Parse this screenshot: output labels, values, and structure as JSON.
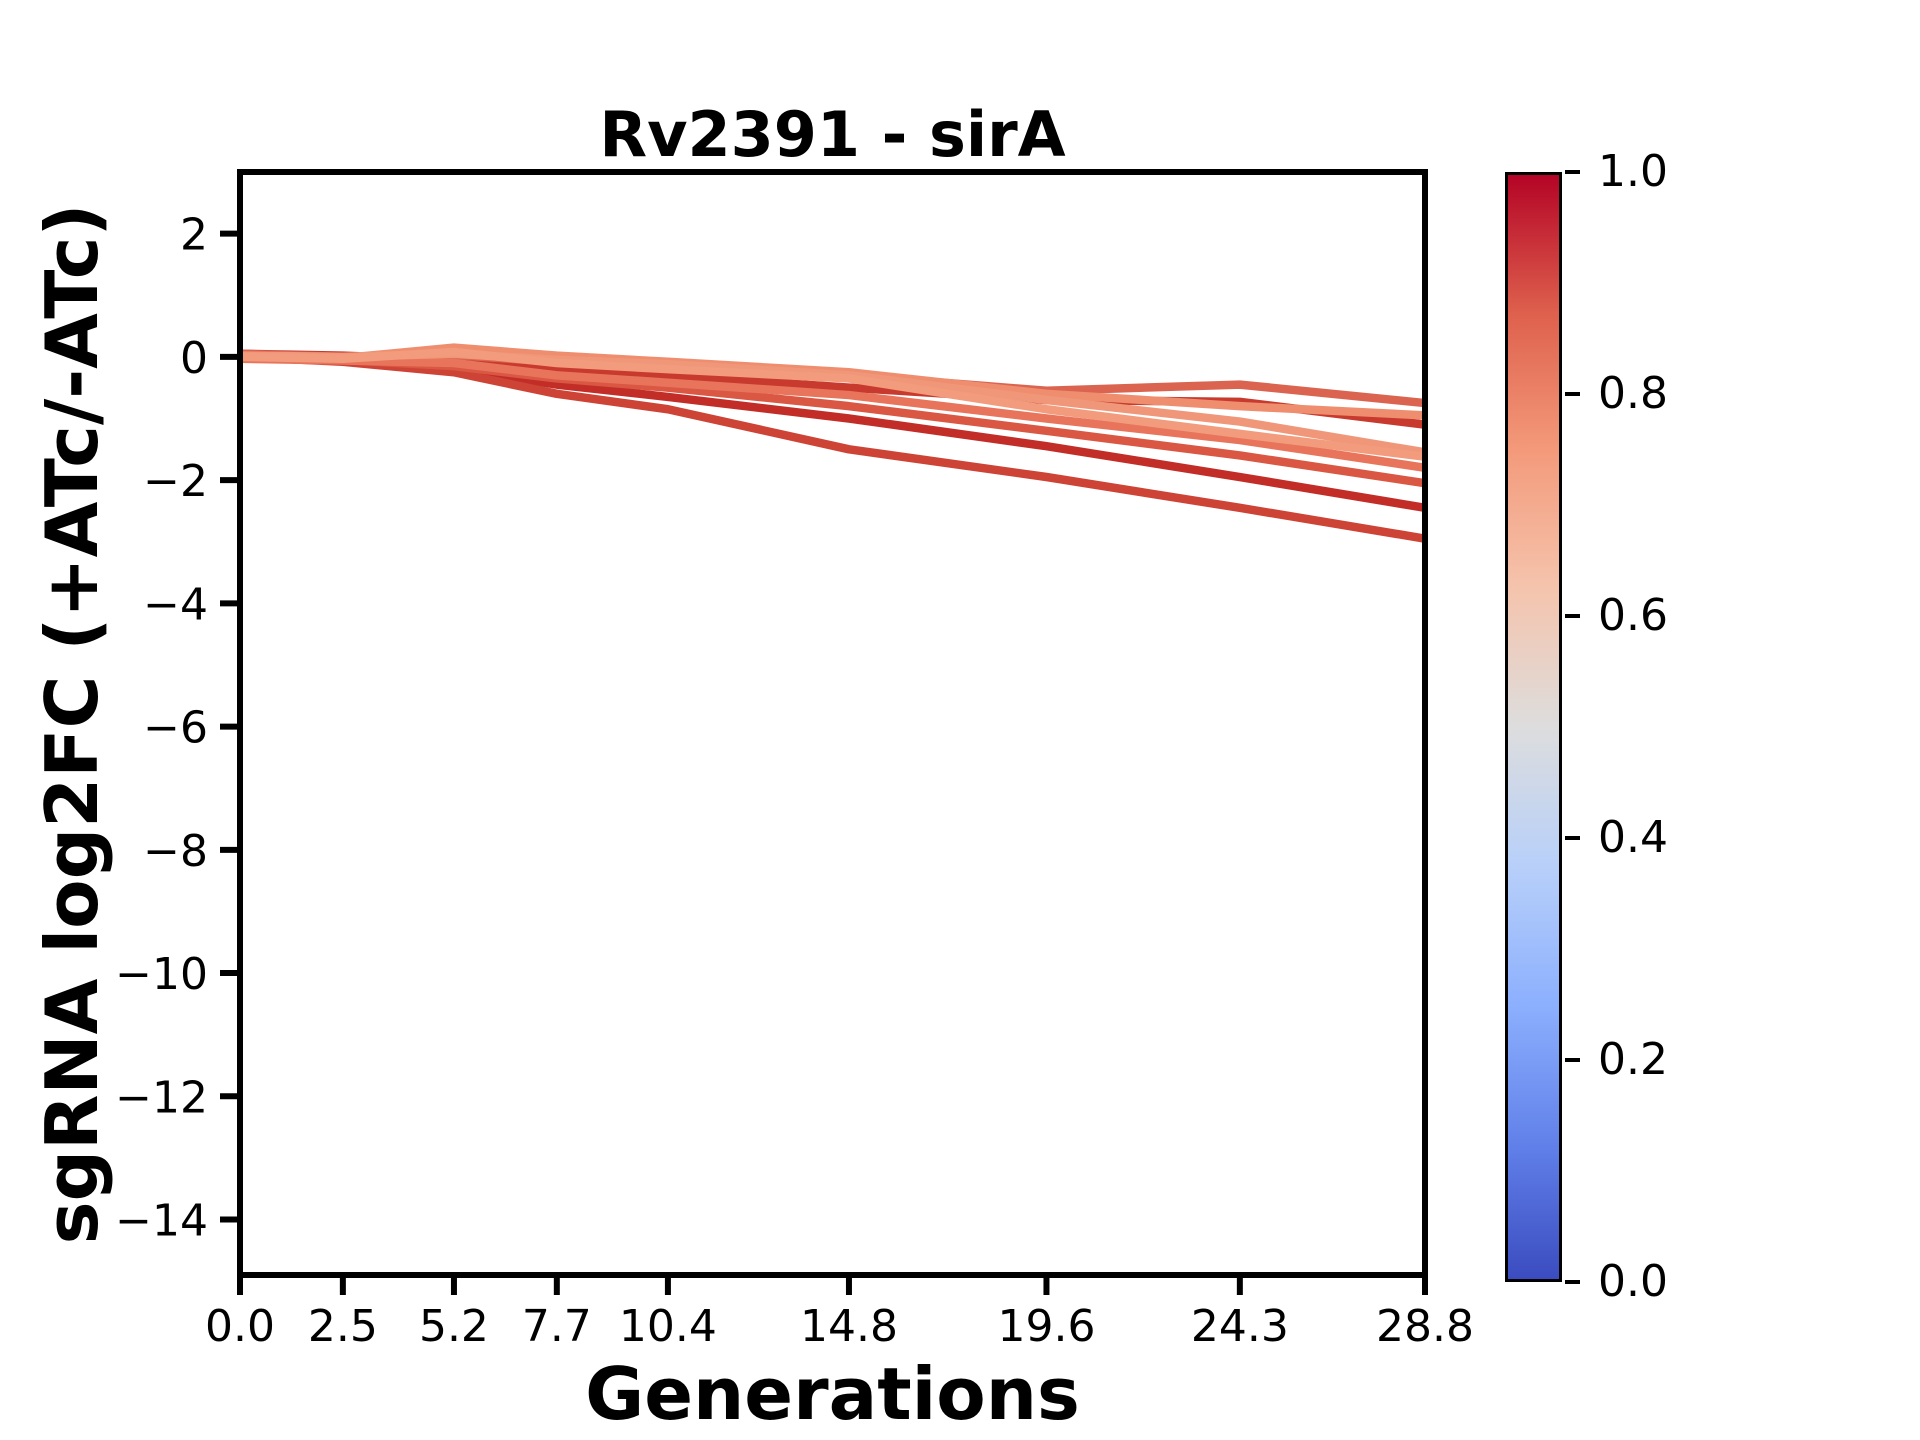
{
  "chart_data": {
    "type": "line",
    "title": "Rv2391 - sirA",
    "xlabel": "Generations",
    "ylabel": "sgRNA log2FC (+ATc/-ATc)",
    "x": [
      0.0,
      2.5,
      5.2,
      7.7,
      10.4,
      14.8,
      19.6,
      24.3,
      28.8
    ],
    "x_tick_labels": [
      "0.0",
      "2.5",
      "5.2",
      "7.7",
      "10.4",
      "14.8",
      "19.6",
      "24.3",
      "28.8"
    ],
    "y_ticks": [
      2,
      0,
      -2,
      -4,
      -6,
      -8,
      -10,
      -12,
      -14
    ],
    "y_tick_labels": [
      "2",
      "0",
      "−2",
      "−4",
      "−6",
      "−8",
      "−10",
      "−12",
      "−14"
    ],
    "xlim": [
      0.0,
      28.8
    ],
    "ylim": [
      -14.9,
      3.0
    ],
    "grid": false,
    "legend": "none",
    "line_width": 8.5,
    "series": [
      {
        "color": "#c22d28",
        "values": [
          0.03,
          -0.02,
          -0.2,
          -0.45,
          -0.65,
          -1.0,
          -1.45,
          -1.95,
          -2.45
        ]
      },
      {
        "color": "#c83a2e",
        "values": [
          0.05,
          0.02,
          -0.05,
          -0.2,
          -0.3,
          -0.5,
          -0.7,
          -0.73,
          -1.1
        ]
      },
      {
        "color": "#cd4335",
        "values": [
          0.0,
          -0.08,
          -0.25,
          -0.6,
          -0.85,
          -1.5,
          -1.95,
          -2.45,
          -2.95
        ]
      },
      {
        "color": "#d95743",
        "values": [
          0.0,
          -0.05,
          -0.15,
          -0.35,
          -0.5,
          -0.8,
          -1.2,
          -1.6,
          -2.05
        ]
      },
      {
        "color": "#db6450",
        "values": [
          0.05,
          0.0,
          0.03,
          -0.08,
          -0.15,
          -0.3,
          -0.55,
          -0.45,
          -0.75
        ]
      },
      {
        "color": "#e8745c",
        "values": [
          -0.03,
          -0.06,
          -0.1,
          -0.3,
          -0.42,
          -0.62,
          -1.0,
          -1.35,
          -1.8
        ]
      },
      {
        "color": "#ef8e6f",
        "values": [
          0.02,
          -0.02,
          0.15,
          0.02,
          -0.08,
          -0.25,
          -0.6,
          -0.8,
          -0.95
        ]
      },
      {
        "color": "#f0977a",
        "values": [
          0.02,
          0.0,
          0.05,
          -0.05,
          -0.12,
          -0.3,
          -0.7,
          -1.05,
          -1.55
        ]
      },
      {
        "color": "#f29b7d",
        "values": [
          0.0,
          -0.03,
          0.08,
          -0.1,
          -0.2,
          -0.35,
          -0.85,
          -1.25,
          -1.62
        ]
      }
    ],
    "colorbar": {
      "tick_labels": [
        "1.0",
        "0.8",
        "0.6",
        "0.4",
        "0.2",
        "0.0"
      ],
      "range": [
        0.0,
        1.0
      ],
      "colormap": "coolwarm",
      "gradient_top_to_bottom": [
        "#b40426",
        "#de604d",
        "#f49a7b",
        "#f5c4ad",
        "#dddddd",
        "#b8d0f9",
        "#8db0fe",
        "#6282ea",
        "#3b4cc0"
      ]
    }
  },
  "style": {
    "background": "#ffffff",
    "axis_color": "#000000"
  }
}
